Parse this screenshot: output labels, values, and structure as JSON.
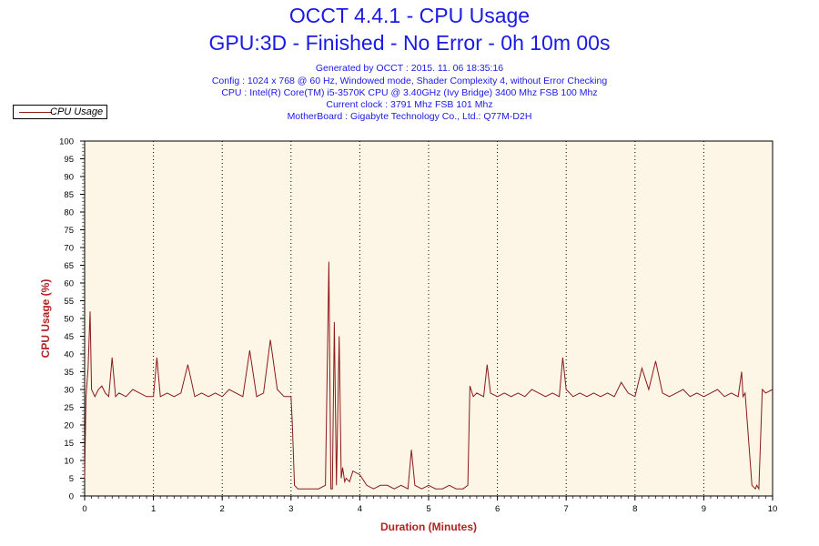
{
  "header": {
    "title": "OCCT 4.4.1 - CPU Usage",
    "subtitle": "GPU:3D - Finished - No Error - 0h 10m 00s",
    "info_lines": [
      "Generated by OCCT : 2015. 11. 06 18:35:16",
      "Config : 1024 x 768 @ 60 Hz, Windowed mode, Shader Complexity 4, without Error Checking",
      "CPU : Intel(R) Core(TM) i5-3570K CPU @ 3.40GHz (Ivy Bridge) 3400 Mhz FSB 100 Mhz",
      "Current clock : 3791 Mhz FSB 101 Mhz",
      "MotherBoard : Gigabyte Technology Co., Ltd.: Q77M-D2H"
    ]
  },
  "legend": {
    "label": "CPU Usage",
    "position": "top-left"
  },
  "colors": {
    "line": "#8b1a1a",
    "plot_bg": "#fdf5e6",
    "axis_title": "#b22222",
    "title": "#1a1ae6"
  },
  "chart_data": {
    "type": "line",
    "title": "OCCT 4.4.1 - CPU Usage",
    "xlabel": "Duration (Minutes)",
    "ylabel": "CPU Usage (%)",
    "xlim": [
      0,
      10
    ],
    "ylim": [
      0,
      100
    ],
    "x_ticks": [
      "0",
      "1",
      "2",
      "3",
      "4",
      "5",
      "6",
      "7",
      "8",
      "9",
      "10"
    ],
    "y_ticks": [
      "0",
      "5",
      "10",
      "15",
      "20",
      "25",
      "30",
      "35",
      "40",
      "45",
      "50",
      "55",
      "60",
      "65",
      "70",
      "75",
      "80",
      "85",
      "90",
      "95",
      "100"
    ],
    "grid": "vertical dotted at each minute",
    "series": [
      {
        "name": "CPU Usage",
        "x": [
          0,
          0.02,
          0.05,
          0.08,
          0.1,
          0.15,
          0.2,
          0.25,
          0.3,
          0.35,
          0.4,
          0.45,
          0.5,
          0.6,
          0.7,
          0.8,
          0.9,
          1.0,
          1.05,
          1.1,
          1.2,
          1.3,
          1.4,
          1.5,
          1.6,
          1.7,
          1.8,
          1.9,
          2.0,
          2.1,
          2.2,
          2.3,
          2.4,
          2.5,
          2.6,
          2.7,
          2.8,
          2.9,
          3.0,
          3.02,
          3.05,
          3.1,
          3.2,
          3.3,
          3.4,
          3.5,
          3.55,
          3.58,
          3.6,
          3.63,
          3.66,
          3.7,
          3.73,
          3.75,
          3.78,
          3.8,
          3.85,
          3.9,
          4.0,
          4.1,
          4.2,
          4.3,
          4.4,
          4.5,
          4.6,
          4.7,
          4.75,
          4.8,
          4.9,
          5.0,
          5.1,
          5.2,
          5.3,
          5.4,
          5.5,
          5.57,
          5.6,
          5.65,
          5.7,
          5.8,
          5.85,
          5.9,
          6.0,
          6.1,
          6.2,
          6.3,
          6.4,
          6.5,
          6.6,
          6.7,
          6.8,
          6.9,
          6.95,
          7.0,
          7.1,
          7.2,
          7.3,
          7.4,
          7.5,
          7.6,
          7.7,
          7.8,
          7.9,
          8.0,
          8.1,
          8.2,
          8.3,
          8.4,
          8.5,
          8.6,
          8.7,
          8.8,
          8.9,
          9.0,
          9.1,
          9.2,
          9.3,
          9.4,
          9.5,
          9.55,
          9.57,
          9.6,
          9.7,
          9.75,
          9.77,
          9.8,
          9.85,
          9.9,
          10.0
        ],
        "values": [
          5,
          28,
          36,
          52,
          30,
          28,
          30,
          31,
          29,
          28,
          39,
          28,
          29,
          28,
          30,
          29,
          28,
          28,
          39,
          28,
          29,
          28,
          29,
          37,
          28,
          29,
          28,
          29,
          28,
          30,
          29,
          28,
          41,
          28,
          29,
          44,
          30,
          28,
          28,
          20,
          3,
          2,
          2,
          2,
          2,
          3,
          66,
          2,
          2,
          49,
          3,
          45,
          5,
          8,
          4,
          5,
          4,
          7,
          6,
          3,
          2,
          3,
          3,
          2,
          3,
          2,
          13,
          3,
          2,
          3,
          2,
          2,
          3,
          2,
          2,
          3,
          31,
          28,
          29,
          28,
          37,
          29,
          28,
          29,
          28,
          29,
          28,
          30,
          29,
          28,
          29,
          28,
          39,
          30,
          28,
          29,
          28,
          29,
          28,
          29,
          28,
          32,
          29,
          28,
          36,
          30,
          38,
          29,
          28,
          29,
          30,
          28,
          29,
          28,
          29,
          30,
          28,
          29,
          28,
          35,
          28,
          29,
          3,
          2,
          3,
          2,
          30,
          29,
          30
        ]
      }
    ]
  }
}
